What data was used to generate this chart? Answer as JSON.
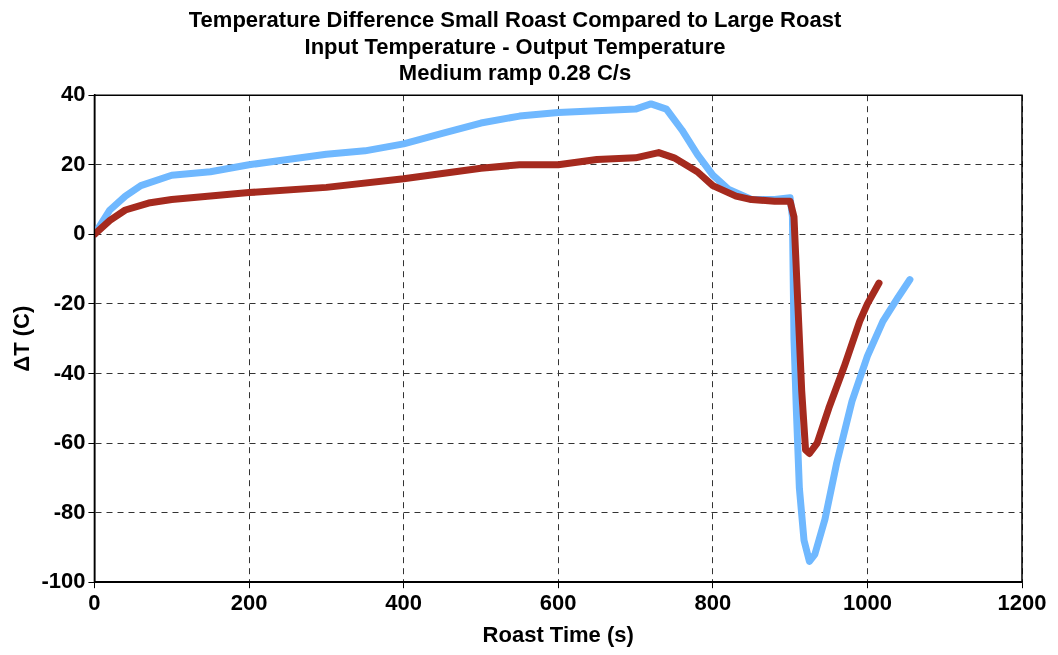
{
  "chart_data": {
    "type": "line",
    "title": [
      "Temperature Difference Small Roast Compared to Large Roast",
      "Input Temperature - Output Temperature",
      "Medium ramp 0.28 C/s"
    ],
    "xlabel": "Roast Time (s)",
    "ylabel": "ΔT (C)",
    "xlim": [
      0,
      1200
    ],
    "xticks": [
      0,
      200,
      400,
      600,
      800,
      1000,
      1200
    ],
    "ylim": [
      -100,
      40
    ],
    "yticks": [
      -100,
      -80,
      -60,
      -40,
      -20,
      0,
      20,
      40
    ],
    "grid": true,
    "line_style": "solid",
    "marker": "none",
    "series": [
      {
        "color": "#a52a1e",
        "x": [
          0,
          20,
          40,
          70,
          100,
          200,
          300,
          400,
          500,
          550,
          600,
          650,
          700,
          730,
          750,
          780,
          800,
          830,
          850,
          880,
          900,
          905,
          910,
          915,
          920,
          925,
          935,
          950,
          970,
          990,
          1000,
          1015
        ],
        "values": [
          0,
          4,
          7,
          9,
          10,
          12,
          13.5,
          16,
          19,
          20,
          20,
          21.5,
          22,
          23.5,
          22,
          18,
          14,
          11,
          10,
          9.5,
          9.5,
          5,
          -20,
          -45,
          -62,
          -63,
          -60,
          -50,
          -38,
          -25,
          -20,
          -14
        ]
      },
      {
        "color": "#6fb8ff",
        "x": [
          0,
          20,
          40,
          60,
          100,
          150,
          200,
          250,
          300,
          350,
          400,
          450,
          500,
          550,
          600,
          650,
          700,
          720,
          740,
          760,
          780,
          800,
          820,
          850,
          880,
          900,
          903,
          905,
          908,
          912,
          918,
          925,
          932,
          945,
          960,
          980,
          1000,
          1020,
          1040,
          1055
        ],
        "values": [
          0,
          7,
          11,
          14,
          17,
          18,
          20,
          21.5,
          23,
          24,
          26,
          29,
          32,
          34,
          35,
          35.5,
          36,
          37.5,
          36,
          30,
          23,
          17,
          13,
          10,
          10,
          10.5,
          5,
          -30,
          -50,
          -73,
          -88,
          -94,
          -92,
          -82,
          -66,
          -48,
          -35,
          -25,
          -18,
          -13
        ]
      }
    ]
  }
}
